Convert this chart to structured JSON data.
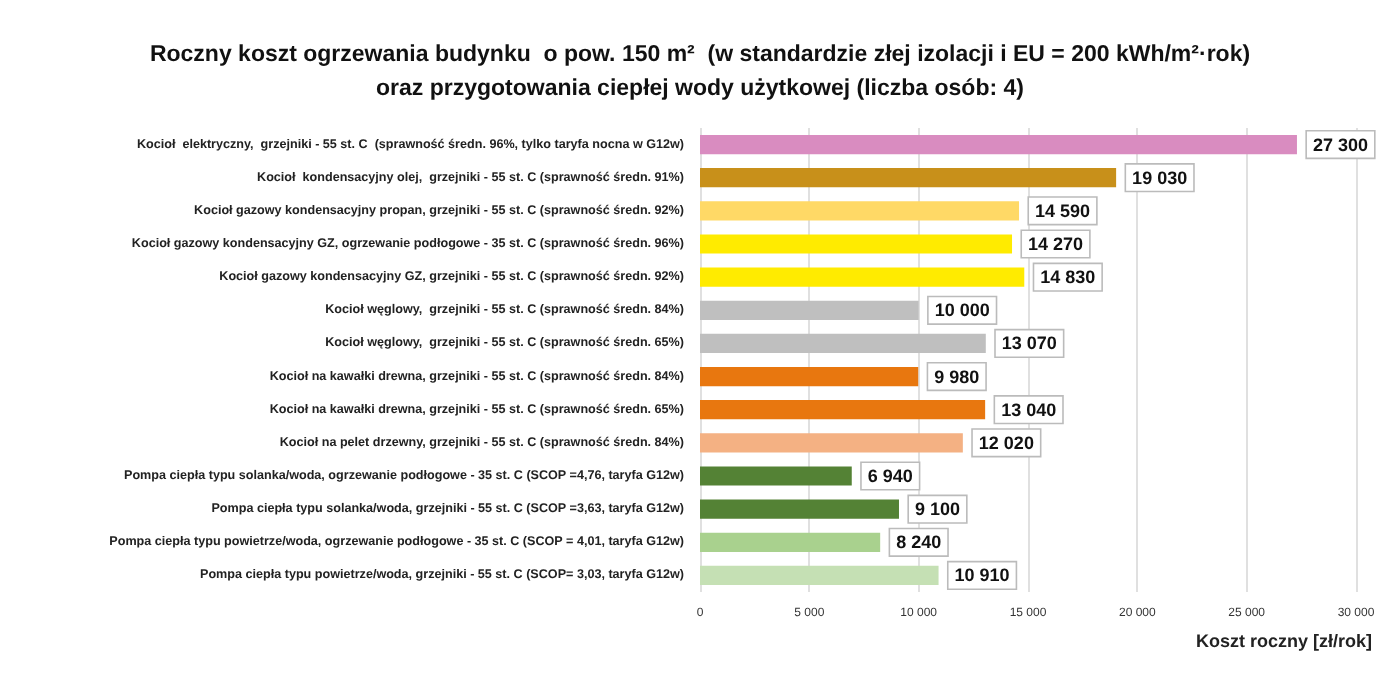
{
  "chart_data": {
    "type": "bar",
    "orientation": "horizontal",
    "title": "Roczny koszt ogrzewania budynku  o pow. 150 m²  (w standardzie złej izolacji i EU = 200 kWh/m²·rok)\noraz przygotowania ciepłej wody użytkowej (liczba osób: 4)",
    "xlabel": "Koszt roczny [zł/rok]",
    "categories": [
      "Kocioł  elektryczny,  grzejniki - 55 st. C  (sprawność średn. 96%, tylko taryfa nocna w G12w)",
      "Kocioł  kondensacyjny olej,  grzejniki - 55 st. C (sprawność średn. 91%)",
      "Kocioł gazowy kondensacyjny propan, grzejniki - 55 st. C (sprawność średn. 92%)",
      "Kocioł gazowy kondensacyjny GZ, ogrzewanie podłogowe - 35 st. C (sprawność średn. 96%)",
      "Kocioł gazowy kondensacyjny GZ, grzejniki - 55 st. C (sprawność średn. 92%)",
      "Kocioł węglowy,  grzejniki - 55 st. C (sprawność średn. 84%)",
      "Kocioł węglowy,  grzejniki - 55 st. C (sprawność średn. 65%)",
      "Kocioł na kawałki drewna, grzejniki - 55 st. C (sprawność średn. 84%)",
      "Kocioł na kawałki drewna, grzejniki - 55 st. C (sprawność średn. 65%)",
      "Kocioł na pelet drzewny, grzejniki - 55 st. C (sprawność średn. 84%)",
      "Pompa ciepła typu solanka/woda, ogrzewanie podłogowe - 35 st. C (SCOP =4,76, taryfa G12w)",
      "Pompa ciepła typu solanka/woda, grzejniki - 55 st. C (SCOP =3,63, taryfa G12w)",
      "Pompa ciepła typu powietrze/woda, ogrzewanie podłogowe - 35 st. C (SCOP = 4,01, taryfa G12w)",
      "Pompa ciepła typu powietrze/woda, grzejniki - 55 st. C (SCOP= 3,03, taryfa G12w)"
    ],
    "values": [
      27300,
      19030,
      14590,
      14270,
      14830,
      10000,
      13070,
      9980,
      13040,
      12020,
      6940,
      9100,
      8240,
      10910
    ],
    "value_labels": [
      "27 300",
      "19 030",
      "14 590",
      "14 270",
      "14 830",
      "10 000",
      "13 070",
      "9 980",
      "13 040",
      "12 020",
      "6 940",
      "9 100",
      "8 240",
      "10 910"
    ],
    "colors": [
      "#d98cc0",
      "#c8901a",
      "#ffd966",
      "#ffeb00",
      "#ffeb00",
      "#bfbfbf",
      "#bfbfbf",
      "#e8770f",
      "#e8770f",
      "#f4b183",
      "#548235",
      "#548235",
      "#a9d18e",
      "#c5e0b4"
    ],
    "xlim": [
      0,
      30000
    ],
    "xticks": [
      0,
      {
        "value": 5000,
        "label": "5 000"
      },
      {
        "value": 10000,
        "label": "10 000"
      },
      {
        "value": 15000,
        "label": "15 000"
      },
      {
        "value": 20000,
        "label": "20 000"
      },
      {
        "value": 25000,
        "label": "25 000"
      },
      {
        "value": 30000,
        "label": "30 000"
      }
    ],
    "grid": "x"
  }
}
